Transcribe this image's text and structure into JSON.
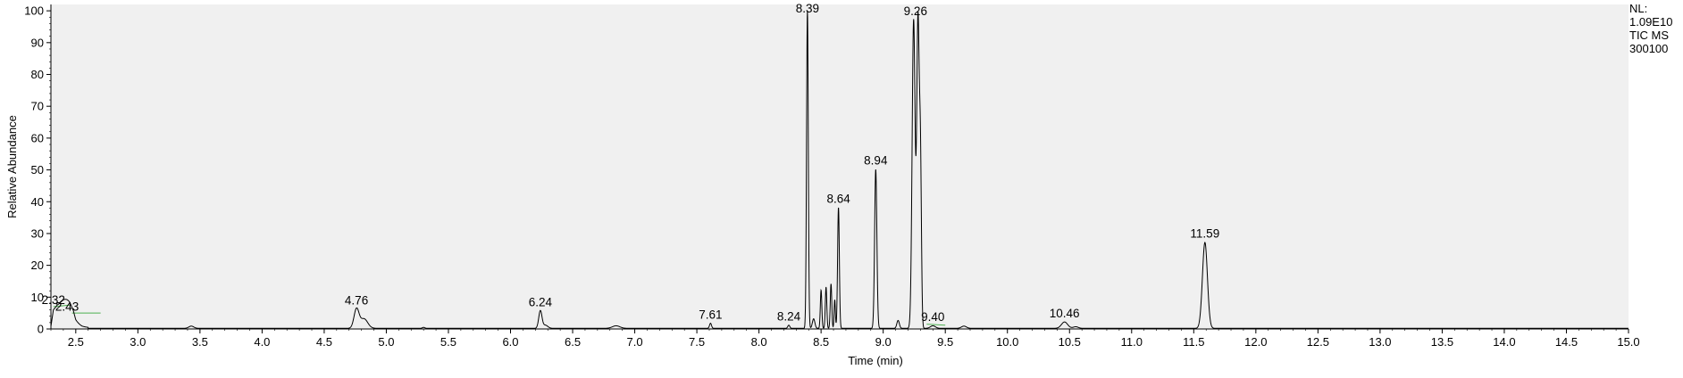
{
  "chart_data": {
    "type": "line",
    "xlabel": "Time (min)",
    "ylabel": "Relative Abundance",
    "xlim": [
      2.3,
      15.0
    ],
    "ylim": [
      0,
      102
    ],
    "grid": false,
    "x_ticks": [
      2.5,
      3.0,
      3.5,
      4.0,
      4.5,
      5.0,
      5.5,
      6.0,
      6.5,
      7.0,
      7.5,
      8.0,
      8.5,
      9.0,
      9.5,
      10.0,
      10.5,
      11.0,
      11.5,
      12.0,
      12.5,
      13.0,
      13.5,
      14.0,
      14.5,
      15.0
    ],
    "x_tick_labels": [
      "2.5",
      "3.0",
      "3.5",
      "4.0",
      "4.5",
      "5.0",
      "5.5",
      "6.0",
      "6.5",
      "7.0",
      "7.5",
      "8.0",
      "8.5",
      "9.0",
      "9.5",
      "10.0",
      "10.5",
      "11.0",
      "11.5",
      "12.0",
      "12.5",
      "13.0",
      "13.5",
      "14.0",
      "14.5",
      "15.0"
    ],
    "y_ticks": [
      0,
      10,
      20,
      30,
      40,
      50,
      60,
      70,
      80,
      90,
      100
    ],
    "y_tick_labels": [
      "0",
      "10",
      "20",
      "30",
      "40",
      "50",
      "60",
      "70",
      "80",
      "90",
      "100"
    ],
    "header_lines": [
      "NL:",
      "1.09E10",
      "TIC  MS",
      "300100"
    ],
    "baseline": 0.2,
    "start_trace": [
      [
        2.3,
        0.5
      ],
      [
        2.32,
        5.5
      ],
      [
        2.35,
        6.2
      ],
      [
        2.4,
        5.6
      ],
      [
        2.45,
        4.6
      ],
      [
        2.48,
        3.2
      ],
      [
        2.5,
        1.2
      ],
      [
        2.55,
        0.5
      ],
      [
        2.6,
        0.3
      ]
    ],
    "peaks": [
      {
        "x": 2.43,
        "y": 4.0,
        "w": 0.05
      },
      {
        "x": 3.43,
        "y": 0.7,
        "w": 0.02
      },
      {
        "x": 4.76,
        "y": 6.0,
        "w": 0.02
      },
      {
        "x": 4.82,
        "y": 3.0,
        "w": 0.03
      },
      {
        "x": 5.3,
        "y": 0.3,
        "w": 0.01
      },
      {
        "x": 6.24,
        "y": 5.5,
        "w": 0.013
      },
      {
        "x": 6.28,
        "y": 1.0,
        "w": 0.02
      },
      {
        "x": 6.85,
        "y": 0.8,
        "w": 0.03
      },
      {
        "x": 7.61,
        "y": 1.6,
        "w": 0.008
      },
      {
        "x": 8.24,
        "y": 1.0,
        "w": 0.008
      },
      {
        "x": 8.39,
        "y": 100,
        "w": 0.007
      },
      {
        "x": 8.44,
        "y": 3.0,
        "w": 0.01
      },
      {
        "x": 8.5,
        "y": 12.0,
        "w": 0.006
      },
      {
        "x": 8.54,
        "y": 13.0,
        "w": 0.006
      },
      {
        "x": 8.58,
        "y": 14.0,
        "w": 0.006
      },
      {
        "x": 8.61,
        "y": 9.0,
        "w": 0.005
      },
      {
        "x": 8.64,
        "y": 38.0,
        "w": 0.007
      },
      {
        "x": 8.94,
        "y": 50.0,
        "w": 0.009
      },
      {
        "x": 9.12,
        "y": 2.5,
        "w": 0.01
      },
      {
        "x": 9.245,
        "y": 97.0,
        "w": 0.012
      },
      {
        "x": 9.28,
        "y": 96.0,
        "w": 0.01
      },
      {
        "x": 9.3,
        "y": 50.0,
        "w": 0.008
      },
      {
        "x": 9.4,
        "y": 0.8,
        "w": 0.02
      },
      {
        "x": 9.65,
        "y": 0.7,
        "w": 0.02
      },
      {
        "x": 10.46,
        "y": 2.0,
        "w": 0.025
      },
      {
        "x": 10.55,
        "y": 0.5,
        "w": 0.02
      },
      {
        "x": 11.59,
        "y": 27.0,
        "w": 0.02
      }
    ],
    "annotations": [
      {
        "label": "2.32",
        "x": 2.32,
        "y": 6.2
      },
      {
        "label": "2.43",
        "x": 2.43,
        "y": 4.0
      },
      {
        "label": "4.76",
        "x": 4.76,
        "y": 6.0
      },
      {
        "label": "6.24",
        "x": 6.24,
        "y": 5.5
      },
      {
        "label": "7.61",
        "x": 7.61,
        "y": 1.6
      },
      {
        "label": "8.24",
        "x": 8.24,
        "y": 1.0
      },
      {
        "label": "8.39",
        "x": 8.39,
        "y": 100
      },
      {
        "label": "8.64",
        "x": 8.64,
        "y": 38.0
      },
      {
        "label": "8.94",
        "x": 8.94,
        "y": 50.0
      },
      {
        "label": "9.26",
        "x": 9.26,
        "y": 97.0
      },
      {
        "label": "9.40",
        "x": 9.4,
        "y": 0.8
      },
      {
        "label": "10.46",
        "x": 10.46,
        "y": 2.0
      },
      {
        "label": "11.59",
        "x": 11.59,
        "y": 27.0
      }
    ],
    "baseline_markers": [
      {
        "x1": 2.32,
        "y1": 7.0,
        "x2": 2.45,
        "y2": 7.5
      },
      {
        "x1": 2.47,
        "y1": 5.0,
        "x2": 2.7,
        "y2": 5.0
      },
      {
        "x1": 9.35,
        "y1": 1.5,
        "x2": 9.5,
        "y2": 1.2
      }
    ],
    "colors": {
      "plot_background": "#f0f0f0",
      "trace": "#000000",
      "baseline_marker": "#4caf50"
    }
  }
}
